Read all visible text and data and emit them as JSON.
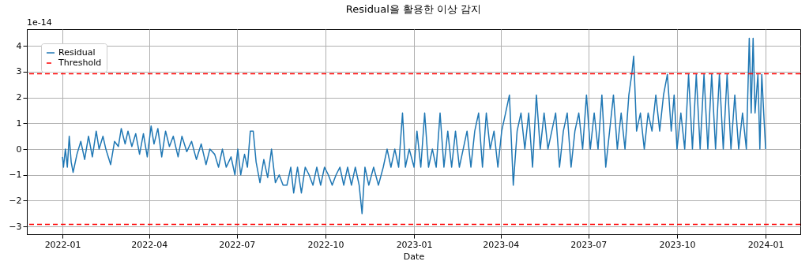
{
  "chart_data": {
    "type": "line",
    "title": "Residual을 활용한 이상 감지",
    "xlabel": "Date",
    "annotations": [
      "1e-14"
    ],
    "x": [
      "2022-01-01",
      "2022-01-02",
      "2022-01-04",
      "2022-01-06",
      "2022-01-08",
      "2022-01-10",
      "2022-01-12",
      "2022-01-16",
      "2022-01-20",
      "2022-01-24",
      "2022-01-28",
      "2022-02-01",
      "2022-02-05",
      "2022-02-08",
      "2022-02-12",
      "2022-02-15",
      "2022-02-20",
      "2022-02-24",
      "2022-02-28",
      "2022-03-03",
      "2022-03-07",
      "2022-03-10",
      "2022-03-14",
      "2022-03-18",
      "2022-03-22",
      "2022-03-26",
      "2022-03-30",
      "2022-04-03",
      "2022-04-06",
      "2022-04-10",
      "2022-04-14",
      "2022-04-18",
      "2022-04-22",
      "2022-04-26",
      "2022-05-01",
      "2022-05-05",
      "2022-05-10",
      "2022-05-15",
      "2022-05-20",
      "2022-05-25",
      "2022-05-30",
      "2022-06-03",
      "2022-06-08",
      "2022-06-12",
      "2022-06-16",
      "2022-06-20",
      "2022-06-25",
      "2022-06-29",
      "2022-07-02",
      "2022-07-05",
      "2022-07-09",
      "2022-07-12",
      "2022-07-15",
      "2022-07-18",
      "2022-07-21",
      "2022-07-25",
      "2022-07-29",
      "2022-08-02",
      "2022-08-06",
      "2022-08-10",
      "2022-08-14",
      "2022-08-18",
      "2022-08-22",
      "2022-08-26",
      "2022-08-29",
      "2022-09-02",
      "2022-09-06",
      "2022-09-10",
      "2022-09-14",
      "2022-09-18",
      "2022-09-22",
      "2022-09-26",
      "2022-09-30",
      "2022-10-04",
      "2022-10-08",
      "2022-10-12",
      "2022-10-16",
      "2022-10-20",
      "2022-10-24",
      "2022-10-28",
      "2022-11-01",
      "2022-11-05",
      "2022-11-08",
      "2022-11-11",
      "2022-11-15",
      "2022-11-20",
      "2022-11-25",
      "2022-11-30",
      "2022-12-04",
      "2022-12-08",
      "2022-12-12",
      "2022-12-16",
      "2022-12-20",
      "2022-12-23",
      "2022-12-27",
      "2023-01-01",
      "2023-01-04",
      "2023-01-08",
      "2023-01-12",
      "2023-01-16",
      "2023-01-20",
      "2023-01-24",
      "2023-01-28",
      "2023-02-01",
      "2023-02-05",
      "2023-02-09",
      "2023-02-13",
      "2023-02-17",
      "2023-02-21",
      "2023-02-25",
      "2023-03-01",
      "2023-03-05",
      "2023-03-09",
      "2023-03-13",
      "2023-03-17",
      "2023-03-21",
      "2023-03-25",
      "2023-03-29",
      "2023-04-02",
      "2023-04-06",
      "2023-04-10",
      "2023-04-14",
      "2023-04-18",
      "2023-04-22",
      "2023-04-26",
      "2023-04-30",
      "2023-05-04",
      "2023-05-08",
      "2023-05-12",
      "2023-05-16",
      "2023-05-20",
      "2023-05-24",
      "2023-05-28",
      "2023-06-01",
      "2023-06-05",
      "2023-06-09",
      "2023-06-13",
      "2023-06-17",
      "2023-06-21",
      "2023-06-25",
      "2023-06-29",
      "2023-07-03",
      "2023-07-07",
      "2023-07-11",
      "2023-07-15",
      "2023-07-19",
      "2023-07-23",
      "2023-07-27",
      "2023-07-31",
      "2023-08-04",
      "2023-08-08",
      "2023-08-12",
      "2023-08-15",
      "2023-08-17",
      "2023-08-20",
      "2023-08-24",
      "2023-08-28",
      "2023-09-01",
      "2023-09-05",
      "2023-09-09",
      "2023-09-13",
      "2023-09-17",
      "2023-09-21",
      "2023-09-25",
      "2023-09-28",
      "2023-10-01",
      "2023-10-05",
      "2023-10-09",
      "2023-10-13",
      "2023-10-17",
      "2023-10-21",
      "2023-10-25",
      "2023-10-29",
      "2023-11-02",
      "2023-11-06",
      "2023-11-10",
      "2023-11-14",
      "2023-11-18",
      "2023-11-22",
      "2023-11-26",
      "2023-11-30",
      "2023-12-04",
      "2023-12-08",
      "2023-12-12",
      "2023-12-15",
      "2023-12-17",
      "2023-12-19",
      "2023-12-21",
      "2023-12-24",
      "2023-12-26",
      "2023-12-28",
      "2023-12-30",
      "2024-01-01"
    ],
    "series": [
      {
        "name": "Residual",
        "color": "#1f77b4",
        "values": [
          -0.3,
          -0.7,
          0,
          -0.7,
          0.5,
          -0.5,
          -0.9,
          -0.2,
          0.3,
          -0.4,
          0.5,
          -0.3,
          0.7,
          0,
          0.5,
          0,
          -0.6,
          0.3,
          0.1,
          0.8,
          0.2,
          0.7,
          0.1,
          0.6,
          -0.2,
          0.6,
          -0.3,
          0.9,
          0.2,
          0.8,
          -0.3,
          0.7,
          0.1,
          0.5,
          -0.3,
          0.5,
          -0.1,
          0.3,
          -0.4,
          0.2,
          -0.6,
          0,
          -0.2,
          -0.7,
          0,
          -0.7,
          -0.3,
          -1.0,
          0,
          -1.0,
          -0.2,
          -0.7,
          0.7,
          0.7,
          -0.5,
          -1.3,
          -0.4,
          -1.1,
          0,
          -1.3,
          -1.0,
          -1.4,
          -1.4,
          -0.7,
          -1.7,
          -0.7,
          -1.7,
          -0.7,
          -1.0,
          -1.4,
          -0.7,
          -1.4,
          -0.7,
          -1.0,
          -1.4,
          -1.0,
          -0.7,
          -1.4,
          -0.7,
          -1.4,
          -0.7,
          -1.4,
          -2.5,
          -0.7,
          -1.4,
          -0.7,
          -1.4,
          -0.7,
          0,
          -0.7,
          0,
          -0.7,
          1.4,
          -0.7,
          0,
          -0.7,
          0.7,
          -0.7,
          1.4,
          -0.7,
          0,
          -0.7,
          1.4,
          -0.7,
          0.7,
          -0.7,
          0.7,
          -0.7,
          0,
          0.7,
          -0.7,
          0.7,
          1.4,
          -0.7,
          1.4,
          0,
          0.7,
          -0.7,
          0.7,
          1.4,
          2.1,
          -1.4,
          0.7,
          1.4,
          0,
          1.4,
          -0.7,
          2.1,
          0,
          1.4,
          0,
          0.7,
          1.4,
          -0.7,
          0.7,
          1.4,
          -0.7,
          0.7,
          1.4,
          0,
          2.1,
          0,
          1.4,
          0,
          2.1,
          -0.7,
          0.7,
          2.1,
          0,
          1.4,
          0,
          2.1,
          2.9,
          3.6,
          0.7,
          1.4,
          0,
          1.4,
          0.7,
          2.1,
          0.7,
          2.1,
          2.9,
          0.7,
          2.1,
          0,
          1.4,
          0,
          2.9,
          0,
          2.9,
          0,
          2.9,
          0,
          2.9,
          0,
          2.9,
          0,
          2.9,
          0,
          2.1,
          0,
          1.4,
          0,
          4.3,
          1.4,
          4.3,
          1.4,
          2.9,
          0,
          2.9,
          1.4,
          0
        ]
      }
    ],
    "ref_lines": [
      {
        "axis": "y",
        "value": 2.92,
        "label": "Threshold",
        "color": "#ff0000",
        "line_style": "dashed"
      },
      {
        "axis": "y",
        "value": -2.92,
        "color": "#ff0000",
        "line_style": "dashed"
      }
    ],
    "xlim": [
      "2021-11-25",
      "2024-02-06"
    ],
    "xticks": [
      "2022-01",
      "2022-04",
      "2022-07",
      "2022-10",
      "2023-01",
      "2023-04",
      "2023-07",
      "2023-10",
      "2024-01"
    ],
    "ylim": [
      -3.3,
      4.65
    ],
    "yticks": [
      -3,
      -2,
      -1,
      0,
      1,
      2,
      3,
      4
    ],
    "grid": true,
    "legend": "top left",
    "line_style": "solid",
    "marker": "none"
  }
}
